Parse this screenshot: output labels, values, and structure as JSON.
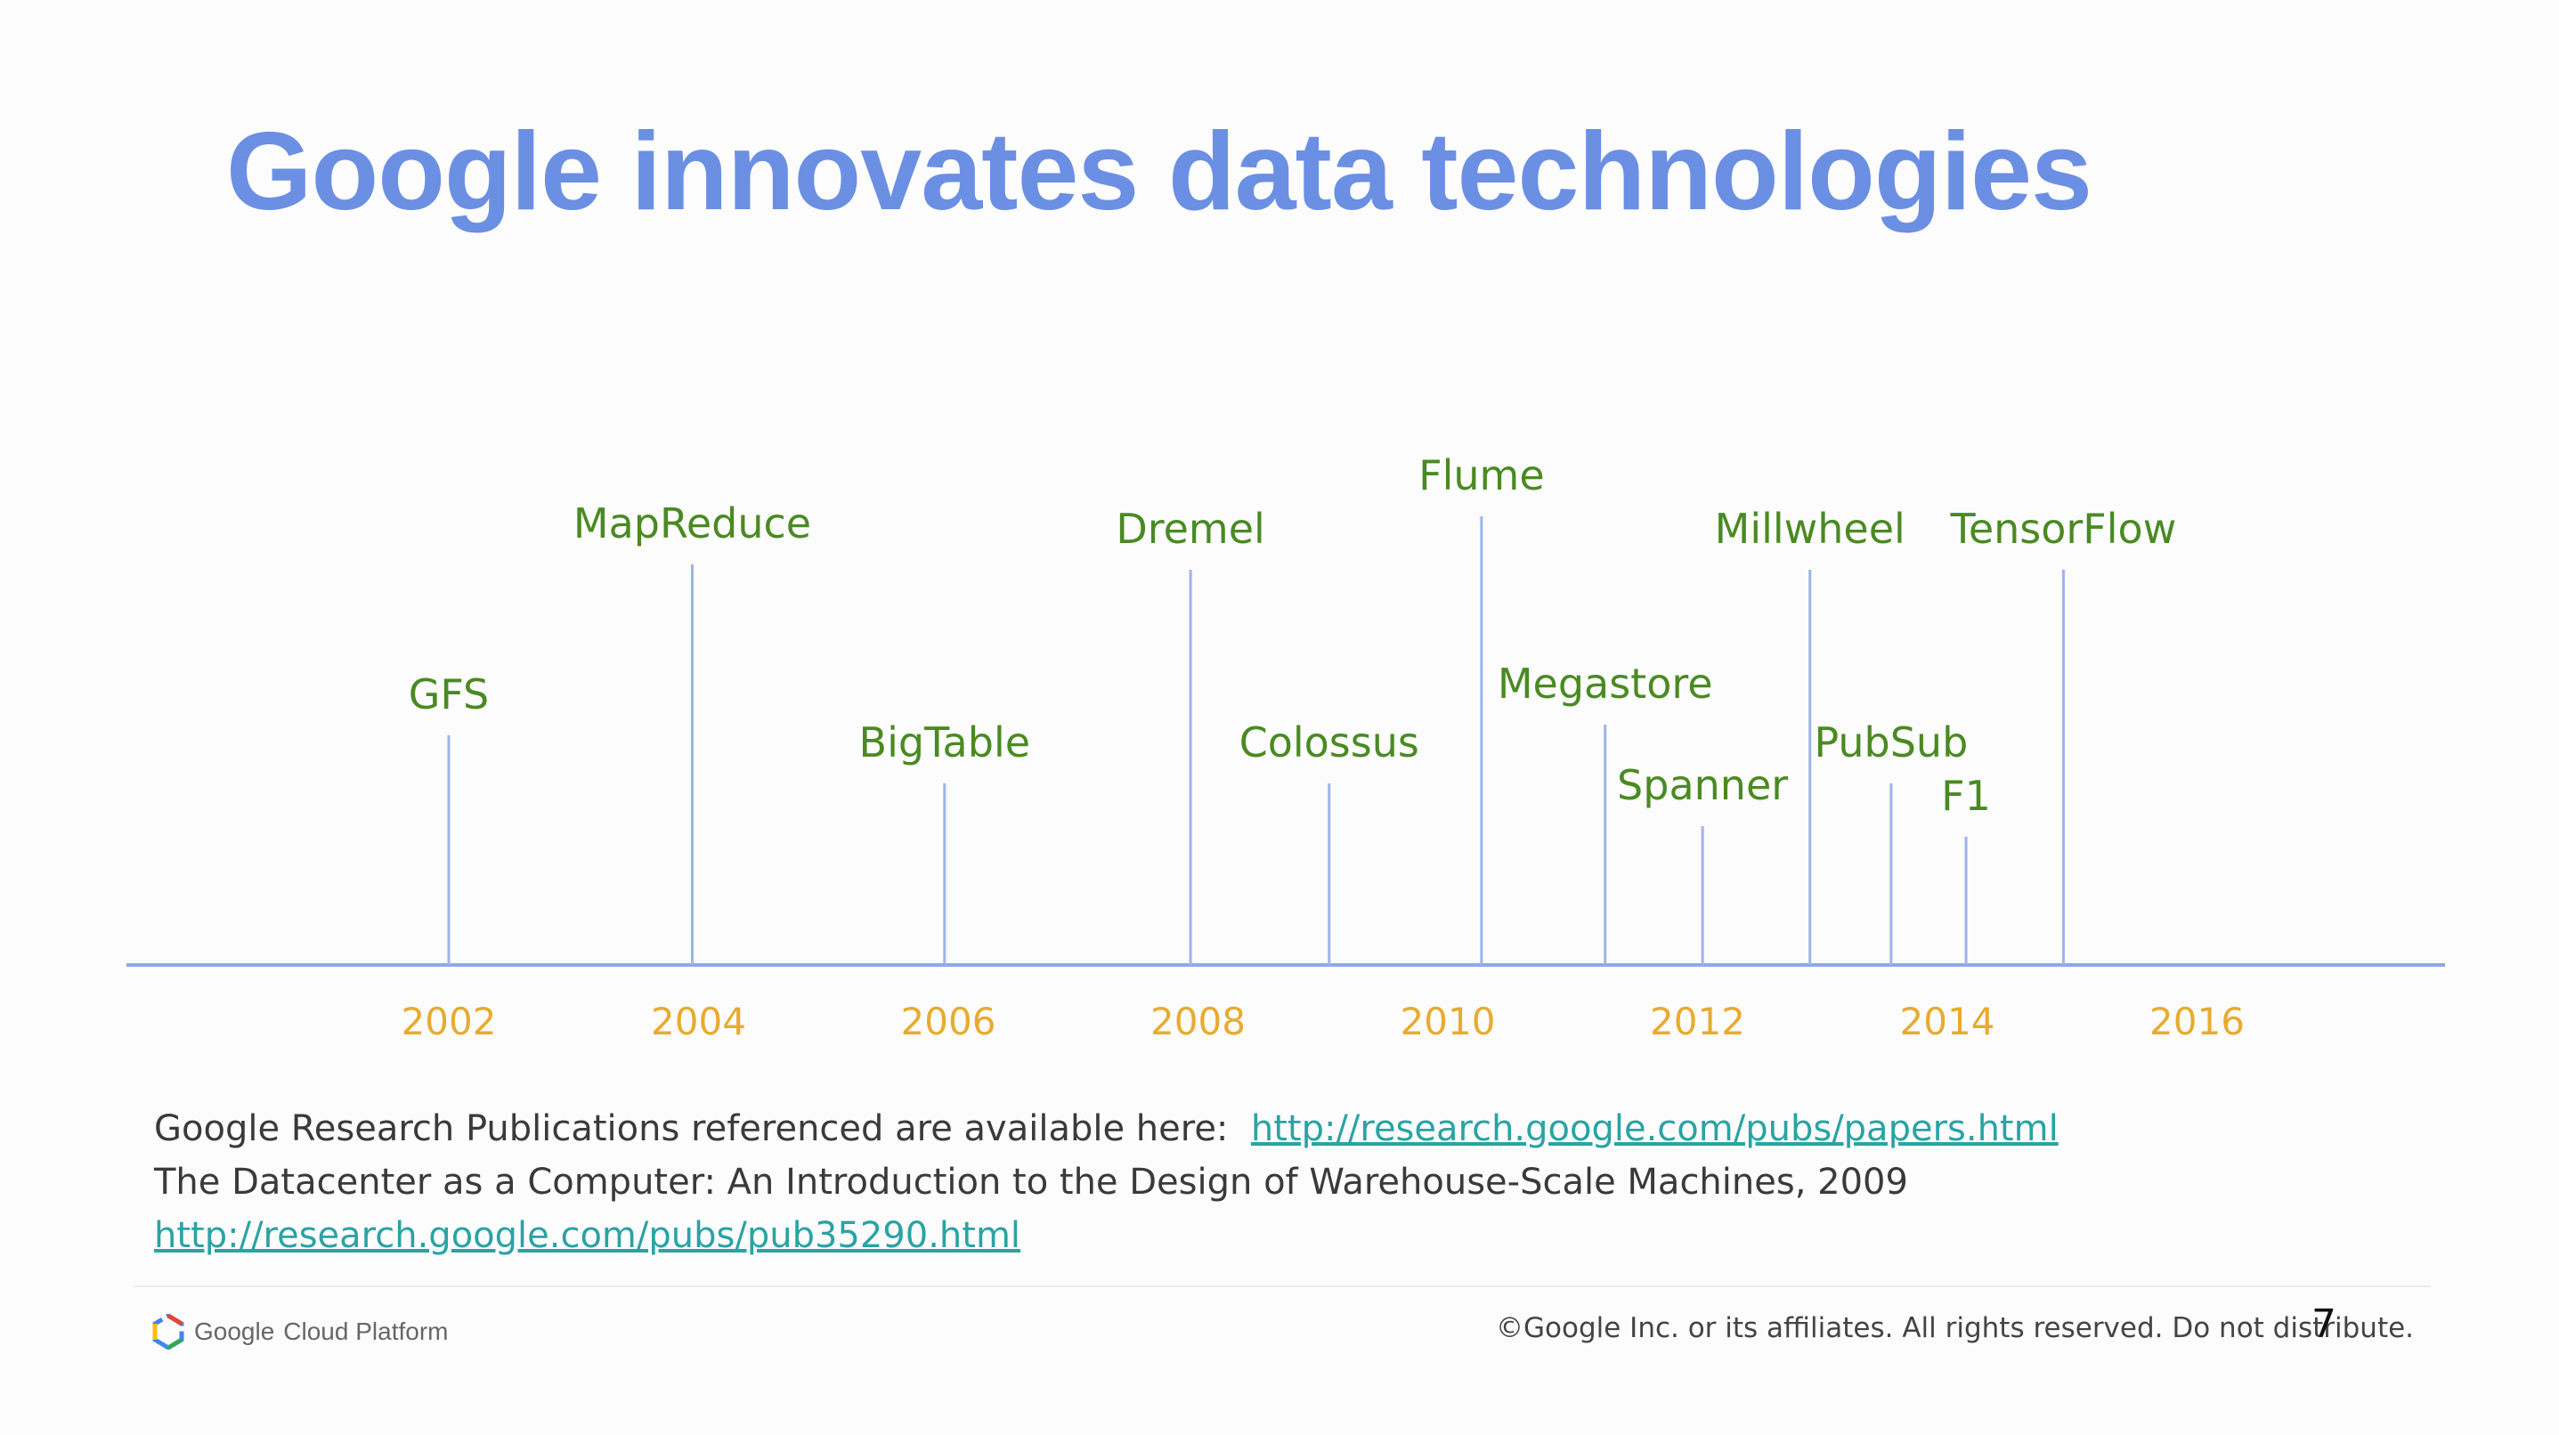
{
  "slide": {
    "title": "Google innovates data technologies",
    "page_number": "7"
  },
  "timeline": {
    "colors": {
      "axis": "#8fa9e6",
      "stem": "#9db3ea",
      "label": "#4a8a22",
      "year": "#e8ab2f"
    },
    "year_ticks": [
      "2002",
      "2004",
      "2006",
      "2008",
      "2010",
      "2012",
      "2014",
      "2016"
    ],
    "events": [
      {
        "name": "GFS",
        "year": 2002.0,
        "level": 0.43
      },
      {
        "name": "MapReduce",
        "year": 2003.95,
        "level": 0.75
      },
      {
        "name": "BigTable",
        "year": 2005.97,
        "level": 0.34
      },
      {
        "name": "Dremel",
        "year": 2007.94,
        "level": 0.74
      },
      {
        "name": "Colossus",
        "year": 2009.05,
        "level": 0.34
      },
      {
        "name": "Flume",
        "year": 2010.27,
        "level": 0.84
      },
      {
        "name": "Megastore",
        "year": 2011.26,
        "level": 0.45
      },
      {
        "name": "Spanner",
        "year": 2012.04,
        "level": 0.26
      },
      {
        "name": "Millwheel",
        "year": 2012.9,
        "level": 0.74
      },
      {
        "name": "PubSub",
        "year": 2013.55,
        "level": 0.34
      },
      {
        "name": "F1",
        "year": 2014.15,
        "level": 0.24
      },
      {
        "name": "TensorFlow",
        "year": 2014.93,
        "level": 0.74
      }
    ]
  },
  "references": {
    "line1_text": "Google Research Publications referenced are available here:",
    "line1_link": "http://research.google.com/pubs/papers.html",
    "line2_text": "The Datacenter as a Computer: An Introduction to the Design of Warehouse-Scale Machines, 2009",
    "line3_link": "http://research.google.com/pubs/pub35290.html"
  },
  "footer": {
    "logo_google": "Google",
    "logo_product": "Cloud Platform",
    "logo_icon": "google-cloud-hexagon-icon",
    "copyright": "©Google Inc. or its affiliates. All rights reserved. Do not distribute."
  }
}
